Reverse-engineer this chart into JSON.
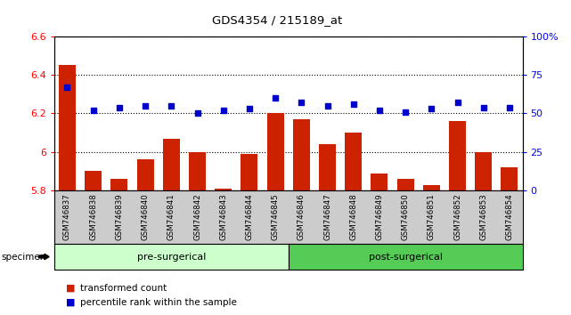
{
  "title": "GDS4354 / 215189_at",
  "categories": [
    "GSM746837",
    "GSM746838",
    "GSM746839",
    "GSM746840",
    "GSM746841",
    "GSM746842",
    "GSM746843",
    "GSM746844",
    "GSM746845",
    "GSM746846",
    "GSM746847",
    "GSM746848",
    "GSM746849",
    "GSM746850",
    "GSM746851",
    "GSM746852",
    "GSM746853",
    "GSM746854"
  ],
  "bar_values": [
    6.45,
    5.9,
    5.86,
    5.96,
    6.07,
    6.0,
    5.81,
    5.99,
    6.2,
    6.17,
    6.04,
    6.1,
    5.89,
    5.86,
    5.83,
    6.16,
    6.0,
    5.92
  ],
  "dot_values": [
    67,
    52,
    54,
    55,
    55,
    50,
    52,
    53,
    60,
    57,
    55,
    56,
    52,
    51,
    53,
    57,
    54,
    54
  ],
  "bar_color": "#cc2200",
  "dot_color": "#0000cc",
  "ylim_left": [
    5.8,
    6.6
  ],
  "ylim_right": [
    0,
    100
  ],
  "yticks_left": [
    5.8,
    6.0,
    6.2,
    6.4,
    6.6
  ],
  "ytick_labels_left": [
    "5.8",
    "6",
    "6.2",
    "6.4",
    "6.6"
  ],
  "yticks_right": [
    0,
    25,
    50,
    75,
    100
  ],
  "ytick_labels_right": [
    "0",
    "25",
    "50",
    "75",
    "100%"
  ],
  "group1_label": "pre-surgerical",
  "group2_label": "post-surgerical",
  "group1_count": 9,
  "group2_count": 9,
  "group1_color": "#ccffcc",
  "group2_color": "#55cc55",
  "specimen_label": "specimen",
  "legend_bar": "transformed count",
  "legend_dot": "percentile rank within the sample",
  "bg_color": "#ffffff",
  "plot_bg": "#ffffff",
  "xtick_bg": "#cccccc"
}
